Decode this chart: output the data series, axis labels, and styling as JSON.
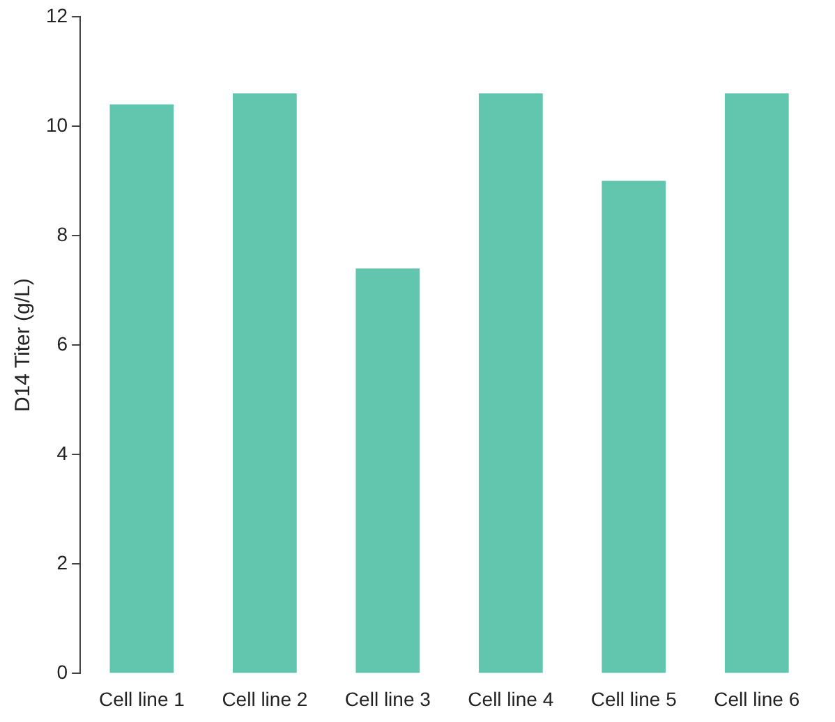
{
  "chart_data": {
    "type": "bar",
    "ylabel": "D14 Titer (g/L)",
    "categories": [
      "Cell line 1",
      "Cell line 2",
      "Cell line 3",
      "Cell line 4",
      "Cell line 5",
      "Cell line 6"
    ],
    "values": [
      10.4,
      10.6,
      7.4,
      10.6,
      9.0,
      10.6
    ],
    "color": "#62c6af",
    "ylim": [
      0,
      12
    ],
    "yticks": [
      0,
      2,
      4,
      6,
      8,
      10,
      12
    ],
    "grid": false,
    "legend": false
  }
}
